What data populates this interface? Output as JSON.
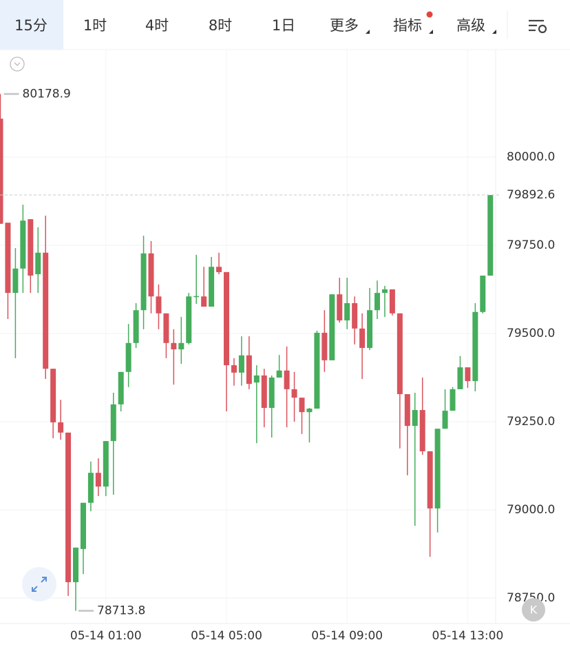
{
  "toolbar": {
    "tabs": [
      "15分",
      "1时",
      "4时",
      "8时",
      "1日",
      "更多",
      "指标",
      "高级"
    ],
    "active": 0
  },
  "chart_data": {
    "type": "candlestick",
    "categories": [
      null,
      null,
      null,
      null,
      null,
      null,
      null,
      null,
      null,
      null,
      null,
      null,
      null,
      null,
      "05-14 01:00",
      null,
      null,
      null,
      null,
      null,
      null,
      null,
      null,
      null,
      null,
      null,
      null,
      null,
      null,
      null,
      "05-14 05:00",
      null,
      null,
      null,
      null,
      null,
      null,
      null,
      null,
      null,
      null,
      null,
      null,
      null,
      null,
      null,
      "05-14 09:00",
      null,
      null,
      null,
      null,
      null,
      null,
      null,
      null,
      null,
      null,
      null,
      null,
      null,
      null,
      null,
      "05-14 13:00",
      null,
      null,
      null
    ],
    "open": [
      80109,
      79814,
      79615,
      79684,
      79824,
      79668,
      79729,
      79400,
      79248,
      79219,
      78795,
      78889,
      79020,
      79105,
      79066,
      79195,
      79299,
      79391,
      79473,
      79566,
      79727,
      79605,
      79557,
      79473,
      79455,
      79473,
      79605,
      79605,
      79576,
      79689,
      79674,
      79410,
      79389,
      79438,
      79361,
      79381,
      79289,
      79375,
      79395,
      79342,
      79318,
      79277,
      79287,
      79502,
      79424,
      79611,
      79537,
      79586,
      79514,
      79459,
      79566,
      79615,
      79625,
      79557,
      79328,
      79238,
      79283,
      79166,
      79004,
      79230,
      79281,
      79342,
      79404,
      79365,
      79561,
      79664
    ],
    "high": [
      80178.9,
      79814,
      79742,
      79865,
      79824,
      79801,
      79834,
      79400,
      79312,
      79219,
      78893,
      79020,
      79137,
      79146,
      79195,
      79332,
      79391,
      79527,
      79586,
      79777,
      79762,
      79639,
      79557,
      79512,
      79547,
      79615,
      79723,
      79689,
      79717,
      79729,
      79674,
      79430,
      79492,
      79492,
      79410,
      79400,
      79381,
      79439,
      79463,
      79391,
      79318,
      79289,
      79508,
      79566,
      79611,
      79658,
      79658,
      79605,
      79557,
      79629,
      79650,
      79635,
      79625,
      79557,
      79328,
      79332,
      79375,
      79166,
      79230,
      79342,
      79348,
      79436,
      79404,
      79586,
      79664,
      79892.6
    ],
    "low": [
      79811,
      79541,
      79430,
      79615,
      79615,
      79615,
      79371,
      79203,
      79199,
      78756,
      78713.8,
      78818,
      78996,
      79039,
      79039,
      79043,
      79279,
      79348,
      79459,
      79512,
      79557,
      79512,
      79430,
      79355,
      79414,
      79469,
      79584,
      79576,
      79576,
      79668,
      79279,
      79352,
      79352,
      79342,
      79189,
      79234,
      79205,
      79375,
      79234,
      79250,
      79215,
      79191,
      79287,
      79391,
      79424,
      79531,
      79512,
      79469,
      79371,
      79453,
      79541,
      79547,
      79551,
      79174,
      79098,
      78955,
      79156,
      78867,
      78936,
      79230,
      79281,
      79342,
      79346,
      79336,
      79557,
      79664
    ],
    "close": [
      79811,
      79615,
      79684,
      79820,
      79664,
      79729,
      79400,
      79248,
      79219,
      78795,
      78893,
      79020,
      79105,
      79066,
      79195,
      79299,
      79391,
      79473,
      79566,
      79727,
      79605,
      79557,
      79473,
      79455,
      79473,
      79605,
      79606,
      79576,
      79689,
      79674,
      79410,
      79389,
      79438,
      79357,
      79381,
      79289,
      79375,
      79395,
      79342,
      79318,
      79277,
      79287,
      79502,
      79424,
      79611,
      79537,
      79586,
      79514,
      79459,
      79566,
      79615,
      79625,
      79557,
      79328,
      79238,
      79283,
      79166,
      79004,
      79230,
      79281,
      79342,
      79404,
      79365,
      79561,
      79664,
      79892.6
    ],
    "up_color": "#45ad5c",
    "down_color": "#d9535c",
    "ylim": [
      78677.7,
      80304.7
    ],
    "yticks": [
      {
        "value": 78750,
        "label": "78750.0"
      },
      {
        "value": 79000,
        "label": "79000.0"
      },
      {
        "value": 79250,
        "label": "79250.0"
      },
      {
        "value": 79500,
        "label": "79500.0"
      },
      {
        "value": 79750,
        "label": "79750.0"
      },
      {
        "value": 80000,
        "label": "80000.0"
      }
    ],
    "grid": true
  },
  "k_button": "K"
}
